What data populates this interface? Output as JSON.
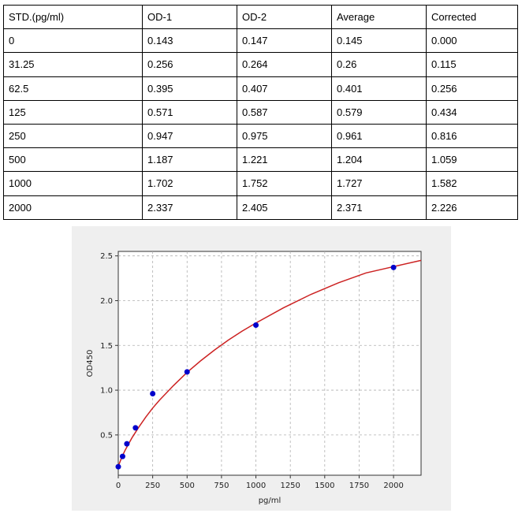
{
  "table": {
    "headers": [
      "STD.(pg/ml)",
      "OD-1",
      "OD-2",
      "Average",
      "Corrected"
    ],
    "rows": [
      [
        "0",
        "0.143",
        "0.147",
        "0.145",
        "0.000"
      ],
      [
        "31.25",
        "0.256",
        "0.264",
        "0.26",
        "0.115"
      ],
      [
        "62.5",
        "0.395",
        "0.407",
        "0.401",
        "0.256"
      ],
      [
        "125",
        "0.571",
        "0.587",
        "0.579",
        "0.434"
      ],
      [
        "250",
        "0.947",
        "0.975",
        "0.961",
        "0.816"
      ],
      [
        "500",
        "1.187",
        "1.221",
        "1.204",
        "1.059"
      ],
      [
        "1000",
        "1.702",
        "1.752",
        "1.727",
        "1.582"
      ],
      [
        "2000",
        "2.337",
        "2.405",
        "2.371",
        "2.226"
      ]
    ]
  },
  "chart_data": {
    "type": "scatter",
    "xlabel": "pg/ml",
    "ylabel": "OD450",
    "xlim": [
      0,
      2200
    ],
    "ylim": [
      0.05,
      2.55
    ],
    "xticks": [
      "0",
      "250",
      "500",
      "750",
      "1000",
      "1250",
      "1500",
      "1750",
      "2000"
    ],
    "xtick_values": [
      0,
      250,
      500,
      750,
      1000,
      1250,
      1500,
      1750,
      2000
    ],
    "yticks": [
      "0.5",
      "1.0",
      "1.5",
      "2.0",
      "2.5"
    ],
    "ytick_values": [
      0.5,
      1.0,
      1.5,
      2.0,
      2.5
    ],
    "grid": true,
    "points": {
      "x": [
        0,
        31.25,
        62.5,
        125,
        250,
        500,
        1000,
        2000
      ],
      "y": [
        0.145,
        0.26,
        0.401,
        0.579,
        0.961,
        1.204,
        1.727,
        2.371
      ]
    },
    "fit_curve": {
      "x": [
        0,
        25,
        50,
        100,
        150,
        200,
        250,
        300,
        400,
        500,
        600,
        700,
        800,
        900,
        1000,
        1200,
        1400,
        1600,
        1800,
        2000,
        2200
      ],
      "y": [
        0.15,
        0.25,
        0.33,
        0.47,
        0.59,
        0.7,
        0.8,
        0.89,
        1.05,
        1.2,
        1.33,
        1.45,
        1.56,
        1.66,
        1.75,
        1.92,
        2.07,
        2.2,
        2.31,
        2.38,
        2.45
      ]
    },
    "colors": {
      "points": "#0000cc",
      "curve": "#cc2222",
      "grid": "#b0b0b0",
      "background": "#ffffff",
      "panel": "#efefef"
    }
  }
}
